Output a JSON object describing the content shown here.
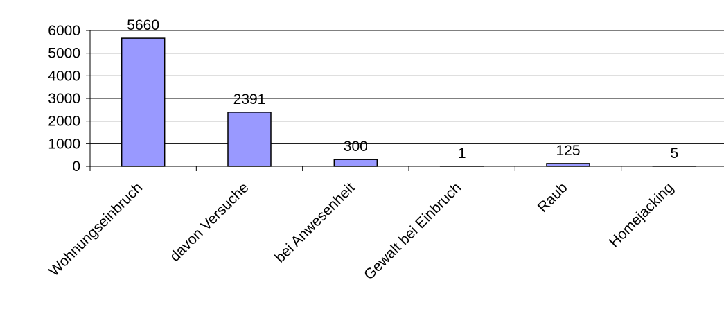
{
  "chart_data": {
    "type": "bar",
    "title": "",
    "xlabel": "",
    "ylabel": "",
    "categories": [
      "Wohnungseinbruch",
      "davon Versuche",
      "bei Anwesenheit",
      "Gewalt bei Einbruch",
      "Raub",
      "Homejacking"
    ],
    "values": [
      5660,
      2391,
      300,
      1,
      125,
      5
    ],
    "data_labels": [
      "5660",
      "2391",
      "300",
      "1",
      "125",
      "5"
    ],
    "ylim": [
      0,
      6000
    ],
    "yticks": [
      0,
      1000,
      2000,
      3000,
      4000,
      5000,
      6000
    ],
    "ytick_labels": [
      "0",
      "1000",
      "2000",
      "3000",
      "4000",
      "5000",
      "6000"
    ],
    "grid": "horizontal",
    "legend": "none",
    "colors": {
      "bar_fill": "#9999ff",
      "bar_stroke": "#000000",
      "grid": "#000000",
      "axis": "#000000"
    }
  }
}
